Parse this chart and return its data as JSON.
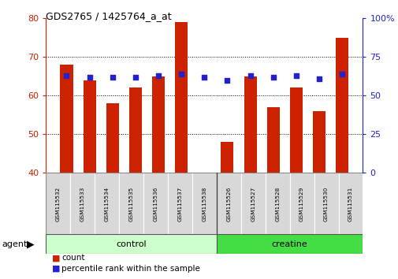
{
  "title": "GDS2765 / 1425764_a_at",
  "samples": [
    "GSM115532",
    "GSM115533",
    "GSM115534",
    "GSM115535",
    "GSM115536",
    "GSM115537",
    "GSM115538",
    "GSM115526",
    "GSM115527",
    "GSM115528",
    "GSM115529",
    "GSM115530",
    "GSM115531"
  ],
  "counts": [
    68,
    64,
    58,
    62,
    65,
    79,
    40,
    48,
    65,
    57,
    62,
    56,
    75
  ],
  "percentile": [
    63,
    62,
    62,
    62,
    63,
    64,
    62,
    60,
    63,
    62,
    63,
    61,
    64
  ],
  "bar_color": "#cc2200",
  "dot_color": "#2222cc",
  "ylim_left": [
    40,
    80
  ],
  "ylim_right": [
    0,
    100
  ],
  "yticks_left": [
    40,
    50,
    60,
    70,
    80
  ],
  "yticks_right": [
    0,
    25,
    50,
    75,
    100
  ],
  "ytick_labels_right": [
    "0",
    "25",
    "50",
    "75",
    "100%"
  ],
  "control_color": "#ccffcc",
  "creatine_color": "#44dd44",
  "groups": [
    {
      "label": "control",
      "n": 7
    },
    {
      "label": "creatine",
      "n": 6
    }
  ],
  "agent_label": "agent",
  "legend_count": "count",
  "legend_pct": "percentile rank within the sample",
  "bg_color": "#ffffff",
  "plot_bg": "#ffffff",
  "tick_color_left": "#cc2200",
  "tick_color_right": "#2222cc",
  "separator_idx": 6.5
}
